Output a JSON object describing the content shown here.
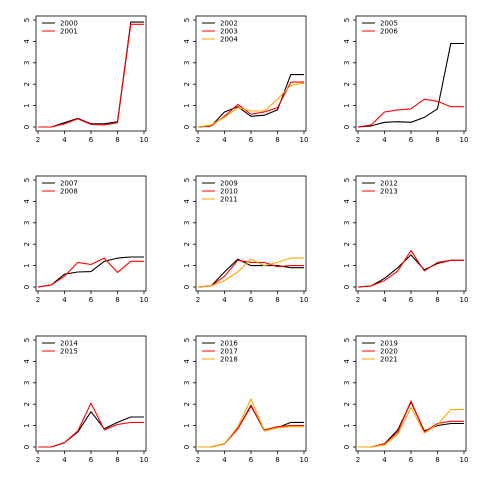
{
  "chart_data": [
    {
      "type": "line",
      "x": [
        2,
        3,
        4,
        5,
        6,
        7,
        8,
        9,
        10
      ],
      "xlim": [
        2,
        10
      ],
      "ylim": [
        0,
        5
      ],
      "xticks": [
        2,
        4,
        6,
        8,
        10
      ],
      "yticks": [
        0,
        1,
        2,
        3,
        4,
        5
      ],
      "series": [
        {
          "name": "2000",
          "color": "#000000",
          "values": [
            0,
            0,
            0.2,
            0.4,
            0.15,
            0.15,
            0.25,
            4.9,
            4.9
          ]
        },
        {
          "name": "2001",
          "color": "#ff0000",
          "values": [
            0,
            0,
            0.15,
            0.38,
            0.12,
            0.1,
            0.2,
            4.8,
            4.8
          ]
        }
      ]
    },
    {
      "type": "line",
      "x": [
        2,
        3,
        4,
        5,
        6,
        7,
        8,
        9,
        10
      ],
      "xlim": [
        2,
        10
      ],
      "ylim": [
        0,
        5
      ],
      "xticks": [
        2,
        4,
        6,
        8,
        10
      ],
      "yticks": [
        0,
        1,
        2,
        3,
        4,
        5
      ],
      "series": [
        {
          "name": "2002",
          "color": "#000000",
          "values": [
            0,
            0.05,
            0.7,
            0.95,
            0.5,
            0.55,
            0.8,
            2.45,
            2.45
          ]
        },
        {
          "name": "2003",
          "color": "#ff0000",
          "values": [
            0,
            0.05,
            0.5,
            1.05,
            0.6,
            0.7,
            0.9,
            2.1,
            2.1
          ]
        },
        {
          "name": "2004",
          "color": "#ffa500",
          "values": [
            0,
            0.1,
            0.45,
            0.9,
            0.75,
            0.75,
            1.3,
            1.95,
            2.05
          ]
        }
      ]
    },
    {
      "type": "line",
      "x": [
        2,
        3,
        4,
        5,
        6,
        7,
        8,
        9,
        10
      ],
      "xlim": [
        2,
        10
      ],
      "ylim": [
        0,
        5
      ],
      "xticks": [
        2,
        4,
        6,
        8,
        10
      ],
      "yticks": [
        0,
        1,
        2,
        3,
        4,
        5
      ],
      "series": [
        {
          "name": "2005",
          "color": "#000000",
          "values": [
            0,
            0.05,
            0.22,
            0.25,
            0.22,
            0.45,
            0.85,
            3.9,
            3.9
          ]
        },
        {
          "name": "2006",
          "color": "#ff0000",
          "values": [
            0,
            0.1,
            0.7,
            0.8,
            0.85,
            1.3,
            1.2,
            0.95,
            0.95
          ]
        }
      ]
    },
    {
      "type": "line",
      "x": [
        2,
        3,
        4,
        5,
        6,
        7,
        8,
        9,
        10
      ],
      "xlim": [
        2,
        10
      ],
      "ylim": [
        0,
        5
      ],
      "xticks": [
        2,
        4,
        6,
        8,
        10
      ],
      "yticks": [
        0,
        1,
        2,
        3,
        4,
        5
      ],
      "series": [
        {
          "name": "2007",
          "color": "#000000",
          "values": [
            0,
            0.1,
            0.6,
            0.7,
            0.72,
            1.2,
            1.35,
            1.4,
            1.4
          ]
        },
        {
          "name": "2008",
          "color": "#ff0000",
          "values": [
            0,
            0.1,
            0.5,
            1.15,
            1.05,
            1.35,
            0.68,
            1.2,
            1.2
          ]
        }
      ]
    },
    {
      "type": "line",
      "x": [
        2,
        3,
        4,
        5,
        6,
        7,
        8,
        9,
        10
      ],
      "xlim": [
        2,
        10
      ],
      "ylim": [
        0,
        5
      ],
      "xticks": [
        2,
        4,
        6,
        8,
        10
      ],
      "yticks": [
        0,
        1,
        2,
        3,
        4,
        5
      ],
      "series": [
        {
          "name": "2009",
          "color": "#000000",
          "values": [
            0,
            0.05,
            0.7,
            1.3,
            1.0,
            1.0,
            1.0,
            0.9,
            0.9
          ]
        },
        {
          "name": "2010",
          "color": "#ff0000",
          "values": [
            0,
            0.05,
            0.5,
            1.25,
            1.15,
            1.15,
            0.95,
            1.0,
            1.0
          ]
        },
        {
          "name": "2011",
          "color": "#ffa500",
          "values": [
            0,
            0.05,
            0.3,
            0.7,
            1.3,
            1.0,
            1.15,
            1.35,
            1.35
          ]
        }
      ]
    },
    {
      "type": "line",
      "x": [
        2,
        3,
        4,
        5,
        6,
        7,
        8,
        9,
        10
      ],
      "xlim": [
        2,
        10
      ],
      "ylim": [
        0,
        5
      ],
      "xticks": [
        2,
        4,
        6,
        8,
        10
      ],
      "yticks": [
        0,
        1,
        2,
        3,
        4,
        5
      ],
      "series": [
        {
          "name": "2012",
          "color": "#000000",
          "values": [
            0,
            0.05,
            0.4,
            0.9,
            1.5,
            0.8,
            1.1,
            1.25,
            1.25
          ]
        },
        {
          "name": "2013",
          "color": "#ff0000",
          "values": [
            0,
            0.05,
            0.3,
            0.75,
            1.7,
            0.75,
            1.15,
            1.25,
            1.25
          ]
        }
      ]
    },
    {
      "type": "line",
      "x": [
        2,
        3,
        4,
        5,
        6,
        7,
        8,
        9,
        10
      ],
      "xlim": [
        2,
        10
      ],
      "ylim": [
        0,
        5
      ],
      "xticks": [
        2,
        4,
        6,
        8,
        10
      ],
      "yticks": [
        0,
        1,
        2,
        3,
        4,
        5
      ],
      "series": [
        {
          "name": "2014",
          "color": "#000000",
          "values": [
            0,
            0,
            0.2,
            0.7,
            1.65,
            0.85,
            1.15,
            1.4,
            1.4
          ]
        },
        {
          "name": "2015",
          "color": "#ff0000",
          "values": [
            0,
            0,
            0.2,
            0.75,
            2.05,
            0.8,
            1.05,
            1.15,
            1.15
          ]
        }
      ]
    },
    {
      "type": "line",
      "x": [
        2,
        3,
        4,
        5,
        6,
        7,
        8,
        9,
        10
      ],
      "xlim": [
        2,
        10
      ],
      "ylim": [
        0,
        5
      ],
      "xticks": [
        2,
        4,
        6,
        8,
        10
      ],
      "yticks": [
        0,
        1,
        2,
        3,
        4,
        5
      ],
      "series": [
        {
          "name": "2016",
          "color": "#000000",
          "values": [
            0,
            0,
            0.15,
            0.85,
            1.95,
            0.75,
            0.9,
            1.15,
            1.15
          ]
        },
        {
          "name": "2017",
          "color": "#ff0000",
          "values": [
            0,
            0,
            0.15,
            0.85,
            1.9,
            0.8,
            0.95,
            1.0,
            1.0
          ]
        },
        {
          "name": "2018",
          "color": "#ffa500",
          "values": [
            0,
            0,
            0.15,
            0.95,
            2.25,
            0.75,
            0.9,
            0.95,
            0.95
          ]
        }
      ]
    },
    {
      "type": "line",
      "x": [
        2,
        3,
        4,
        5,
        6,
        7,
        8,
        9,
        10
      ],
      "xlim": [
        2,
        10
      ],
      "ylim": [
        0,
        5
      ],
      "xticks": [
        2,
        4,
        6,
        8,
        10
      ],
      "yticks": [
        0,
        1,
        2,
        3,
        4,
        5
      ],
      "series": [
        {
          "name": "2019",
          "color": "#000000",
          "values": [
            0,
            0,
            0.15,
            0.8,
            2.1,
            0.75,
            1.0,
            1.1,
            1.1
          ]
        },
        {
          "name": "2020",
          "color": "#ff0000",
          "values": [
            0,
            0,
            0.15,
            0.7,
            2.15,
            0.7,
            1.1,
            1.2,
            1.2
          ]
        },
        {
          "name": "2021",
          "color": "#ffa500",
          "values": [
            0,
            0,
            0.1,
            0.6,
            1.85,
            0.65,
            1.05,
            1.75,
            1.75
          ]
        }
      ]
    }
  ]
}
